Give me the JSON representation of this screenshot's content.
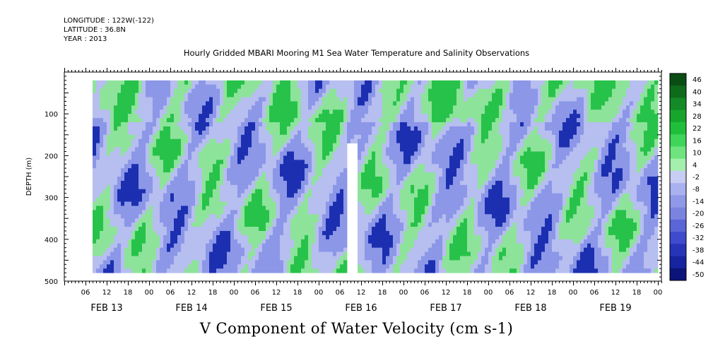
{
  "header": {
    "longitude": "LONGITUDE : 122W(-122)",
    "latitude": "LATITUDE : 36.8N",
    "year": "YEAR : 2013"
  },
  "title": "Hourly Gridded MBARI Mooring M1 Sea Water Temperature and Salinity Observations",
  "bottom_title": "V Component of Water Velocity (cm s-1)",
  "chart_data": {
    "type": "heatmap",
    "title": "Hourly Gridded MBARI Mooring M1 Sea Water Temperature and Salinity Observations",
    "xlabel": "",
    "ylabel": "DEPTH (m)",
    "colorbar_label": "V Component of Water Velocity (cm s-1)",
    "y_reversed": true,
    "ylim": [
      500,
      0
    ],
    "y_ticks": [
      100,
      200,
      300,
      400,
      500
    ],
    "x_hour_labels": [
      "06",
      "12",
      "18",
      "00",
      "06",
      "12",
      "18",
      "00",
      "06",
      "12",
      "18",
      "00",
      "06",
      "12",
      "18",
      "00",
      "06",
      "12",
      "18",
      "00",
      "06",
      "12",
      "18",
      "00",
      "06",
      "12",
      "18",
      "00"
    ],
    "x_day_labels": [
      "FEB 13",
      "FEB 14",
      "FEB 15",
      "FEB 16",
      "FEB 17",
      "FEB 18",
      "FEB 19"
    ],
    "data_range_hours": [
      8,
      168
    ],
    "data_depth_range": [
      20,
      480
    ],
    "gap": {
      "hour_start": 80,
      "hour_end": 83,
      "depth_start": 168
    },
    "colorbar_levels": [
      "46",
      "40",
      "34",
      "28",
      "22",
      "16",
      "10",
      "4",
      "-2",
      "-8",
      "-14",
      "-20",
      "-26",
      "-32",
      "-38",
      "-44",
      "-50"
    ],
    "colors": {
      "strong_negative": "#1c2fb0",
      "negative": "#8c97e8",
      "near_zero": "#b7bef0",
      "positive": "#8ee39a",
      "strong_positive": "#27c24a"
    },
    "colorbar_colors": [
      "#0a4d14",
      "#0f6b1c",
      "#138a25",
      "#18a52e",
      "#1fbf3a",
      "#3fd45a",
      "#6ee37e",
      "#a4efae",
      "#c8cdf3",
      "#a9b1ee",
      "#8f99e8",
      "#7a84e0",
      "#5a66d6",
      "#3d4bcc",
      "#2635b8",
      "#1624a0",
      "#0b1478"
    ]
  }
}
